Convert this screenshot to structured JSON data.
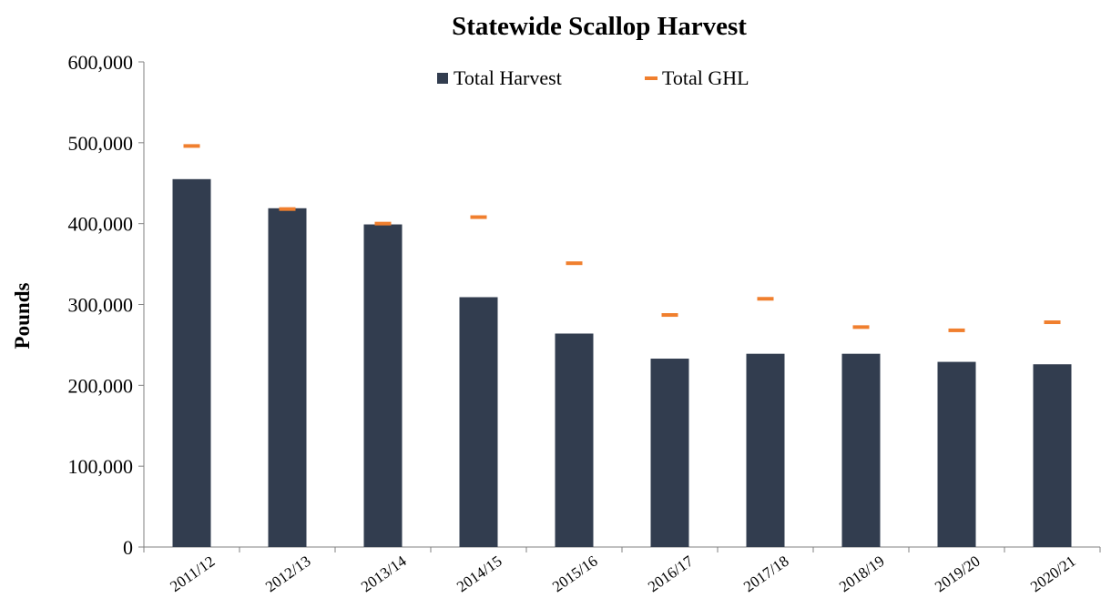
{
  "chart_data": {
    "type": "bar",
    "title": "Statewide Scallop Harvest",
    "xlabel": "",
    "ylabel": "Pounds",
    "ylim": [
      0,
      600000
    ],
    "yticks": [
      0,
      100000,
      200000,
      300000,
      400000,
      500000,
      600000
    ],
    "ytick_labels": [
      "0",
      "100,000",
      "200,000",
      "300,000",
      "400,000",
      "500,000",
      "600,000"
    ],
    "categories": [
      "2011/12",
      "2012/13",
      "2013/14",
      "2014/15",
      "2015/16",
      "2016/17",
      "2017/18",
      "2018/19",
      "2019/20",
      "2020/21"
    ],
    "series": [
      {
        "name": "Total Harvest",
        "kind": "bar",
        "color": "#323d4f",
        "values": [
          455000,
          419000,
          399000,
          309000,
          264000,
          233000,
          239000,
          239000,
          229000,
          226000
        ]
      },
      {
        "name": "Total GHL",
        "kind": "marker",
        "color": "#f07f2e",
        "values": [
          496000,
          418000,
          400000,
          408000,
          351000,
          287000,
          307000,
          272000,
          268000,
          278000
        ]
      }
    ],
    "legend_position": "top-center",
    "grid": false
  }
}
